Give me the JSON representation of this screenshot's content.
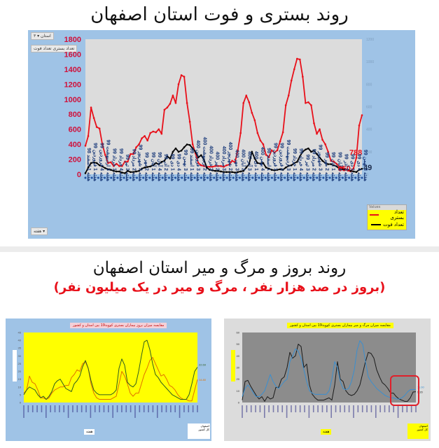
{
  "top": {
    "title": "روند بستری و فوت استان اصفهان",
    "filter_chip_1": "استان ▾ ۳",
    "filter_chip_2": "تعداد بستری  تعداد فوت",
    "bottom_chip": "▾ هفته",
    "legend": {
      "header": "Values",
      "items": [
        {
          "label": "تعداد بستری",
          "color": "#e8101a"
        },
        {
          "label": "تعداد فوت",
          "color": "#000000"
        }
      ]
    }
  },
  "bottom": {
    "title": "روند بروز و مرگ و میر استان اصفهان",
    "subtitle": "(بروز در صد هزار نفر ، مرگ و میر در یک میلیون نفر)",
    "left_chart_title": "مقایسه میزان بروز بیماران بستری کووید19 بین استان و کشور",
    "right_chart_title": "مقایسه میزان مرگ و میر بیماران بستری کووید19 بین استان و کشور",
    "x_axis_label": "هفته",
    "left_legend": [
      "اصفهان",
      "کل کشور"
    ],
    "right_legend": [
      "اصفهان",
      "کل کشور"
    ]
  },
  "chart_data": [
    {
      "type": "line",
      "title": "روند بستری و فوت استان اصفهان",
      "xlabel": "هفته",
      "ylabel_left": "تعداد بستری",
      "ylabel_right": "تعداد فوت",
      "ylim_left": [
        0,
        1800
      ],
      "yticks_left": [
        0,
        200,
        400,
        600,
        800,
        1000,
        1200,
        1400,
        1600,
        1800
      ],
      "ylim_right": [
        0,
        1200
      ],
      "yticks_right": [
        0,
        200,
        400,
        600,
        800,
        1000,
        1200
      ],
      "x_tick_labels_sample": [
        "هفته 1 اسفند 98",
        "هفته 1 فروردین 99",
        "هفته 4 فروردین 99",
        "هفته 3 اردیبهشت 99",
        "هفته 1 خرداد 99",
        "هفته 4 خرداد 99",
        "هفته 3 تیر 99",
        "هفته 2 مرداد 99",
        "هفته 3 شهریور 99",
        "هفته 2 مهر 99",
        "هفته 1 آبان 99",
        "هفته 4 آبان 99",
        "هفته 2 آذر 99",
        "هفته 1 دی 99",
        "هفته 4 دی 99",
        "هفته 3 بهمن 99",
        "هفته 1 اسفند 99",
        "هفته 3 فروردین 400",
        "هفته 2 اردیبهشت 400",
        "هفته 3 خرداد 400",
        "هفته 2 تیر 400",
        "هفته 3 مرداد 400",
        "هفته 2 شهریور 400",
        "هفته 3 مهر 400",
        "هفته 2 آبان 400",
        "هفته 3 آذر 400",
        "هفته 1 دی 400",
        "هفته 4 بهمن 400"
      ],
      "legend_position": "bottom-right",
      "grid": false,
      "series": [
        {
          "name": "تعداد بستری",
          "axis": "left",
          "color": "#e8101a",
          "values": [
            380,
            510,
            890,
            750,
            630,
            610,
            400,
            260,
            150,
            160,
            110,
            140,
            110,
            110,
            170,
            170,
            270,
            270,
            360,
            400,
            480,
            510,
            450,
            550,
            570,
            560,
            600,
            540,
            860,
            890,
            940,
            1050,
            950,
            1200,
            1320,
            1300,
            950,
            700,
            400,
            280,
            150,
            120,
            110,
            100,
            100,
            100,
            110,
            110,
            110,
            100,
            120,
            130,
            180,
            160,
            320,
            550,
            950,
            1050,
            960,
            820,
            720,
            550,
            450,
            400,
            260,
            230,
            320,
            290,
            320,
            440,
            560,
            920,
            1050,
            1250,
            1400,
            1540,
            1530,
            1300,
            950,
            960,
            920,
            680,
            540,
            600,
            460,
            400,
            300,
            180,
            170,
            140,
            100,
            90,
            70,
            50,
            40,
            80,
            220,
            650,
            788
          ],
          "annotations": [
            {
              "index": 95,
              "label": "650"
            },
            {
              "index": 96,
              "label": "788"
            }
          ]
        },
        {
          "name": "تعداد فوت",
          "axis": "right",
          "color": "#000000",
          "values": [
            10,
            60,
            100,
            105,
            100,
            80,
            70,
            55,
            45,
            40,
            30,
            25,
            25,
            15,
            10,
            30,
            20,
            20,
            25,
            30,
            50,
            60,
            65,
            70,
            80,
            100,
            90,
            110,
            120,
            160,
            140,
            200,
            230,
            200,
            210,
            240,
            265,
            260,
            230,
            200,
            150,
            170,
            130,
            60,
            40,
            35,
            30,
            30,
            25,
            20,
            20,
            20,
            20,
            15,
            20,
            25,
            30,
            60,
            90,
            200,
            140,
            100,
            95,
            100,
            60,
            50,
            40,
            35,
            40,
            45,
            40,
            60,
            75,
            80,
            100,
            110,
            160,
            200,
            220,
            230,
            200,
            210,
            180,
            150,
            120,
            100,
            90,
            90,
            80,
            70,
            50,
            45,
            40,
            40,
            30,
            25,
            20,
            40,
            49
          ],
          "annotations": [
            {
              "index": 98,
              "label": "49"
            }
          ]
        }
      ]
    },
    {
      "type": "line",
      "title": "مقایسه میزان بروز بیماران بستری کووید19 بین استان و کشور",
      "xlabel": "هفته",
      "ylabel": "بروز در صد هزار نفر",
      "ylim": [
        0,
        45
      ],
      "yticks": [
        0,
        5,
        10,
        15,
        20,
        25,
        30,
        35,
        40,
        45
      ],
      "legend_position": "bottom-right",
      "series": [
        {
          "name": "اصفهان",
          "color": "#e07000",
          "values": [
            6,
            8,
            17,
            13,
            12,
            8,
            3,
            3,
            2,
            3,
            6,
            8,
            9,
            10,
            10,
            11,
            11,
            16,
            18,
            21,
            20,
            25,
            26,
            22,
            12,
            6,
            3,
            2,
            2,
            2,
            2,
            2,
            3,
            4,
            12,
            20,
            17,
            12,
            6,
            4,
            6,
            6,
            12,
            18,
            22,
            27,
            29,
            25,
            21,
            17,
            18,
            15,
            11,
            10,
            8,
            5,
            3,
            2,
            2,
            1,
            1,
            8,
            14.8
          ],
          "annotations": [
            {
              "index": 62,
              "label": "14.80"
            }
          ]
        },
        {
          "name": "کل کشور",
          "color": "#2e5e1e",
          "values": [
            5,
            8,
            10,
            9,
            8,
            5,
            3,
            4,
            2,
            4,
            7,
            12,
            14,
            15,
            12,
            9,
            8,
            7,
            12,
            14,
            17,
            23,
            27,
            22,
            14,
            8,
            6,
            5,
            5,
            5,
            5,
            5,
            6,
            8,
            22,
            28,
            24,
            13,
            11,
            10,
            12,
            20,
            30,
            39,
            40,
            34,
            25,
            18,
            16,
            13,
            11,
            9,
            7,
            5,
            4,
            3,
            2,
            2,
            2,
            5,
            12,
            20,
            22.69
          ],
          "annotations": [
            {
              "index": 62,
              "label": "22.69"
            }
          ]
        }
      ]
    },
    {
      "type": "line",
      "title": "مقایسه میزان مرگ و میر بیماران بستری کووید19 بین استان و کشور",
      "xlabel": "هفته",
      "ylabel": "مرگ و میر در یک میلیون نفر",
      "ylim": [
        0,
        60
      ],
      "yticks": [
        0,
        10,
        20,
        30,
        40,
        50,
        60
      ],
      "legend_position": "bottom-right",
      "series": [
        {
          "name": "اصفهان",
          "color": "#1a1a1a",
          "values": [
            2,
            18,
            19,
            14,
            10,
            6,
            3,
            5,
            1,
            5,
            3,
            4,
            13,
            13,
            20,
            22,
            30,
            43,
            38,
            40,
            50,
            48,
            30,
            33,
            15,
            7,
            4,
            2,
            2,
            2,
            3,
            4,
            2,
            15,
            35,
            20,
            18,
            10,
            7,
            6,
            7,
            10,
            15,
            25,
            35,
            43,
            42,
            38,
            28,
            22,
            17,
            15,
            12,
            8,
            8,
            5,
            3,
            2,
            1,
            1,
            4,
            9,
            9.2
          ],
          "annotations": [
            {
              "index": 62,
              "label": "9.20"
            }
          ]
        },
        {
          "name": "کل کشور",
          "color": "#3a8fd0",
          "values": [
            5,
            12,
            15,
            12,
            8,
            5,
            5,
            7,
            10,
            17,
            24,
            18,
            14,
            12,
            15,
            18,
            20,
            35,
            40,
            46,
            44,
            38,
            28,
            18,
            10,
            8,
            7,
            7,
            7,
            7,
            7,
            10,
            20,
            35,
            30,
            18,
            12,
            11,
            12,
            18,
            28,
            45,
            53,
            50,
            35,
            22,
            18,
            15,
            12,
            10,
            8,
            6,
            5,
            4,
            4,
            3,
            3,
            4,
            6,
            9,
            11,
            11,
            11.0
          ],
          "annotations": [
            {
              "index": 62,
              "label": "11.00"
            }
          ]
        }
      ]
    }
  ]
}
